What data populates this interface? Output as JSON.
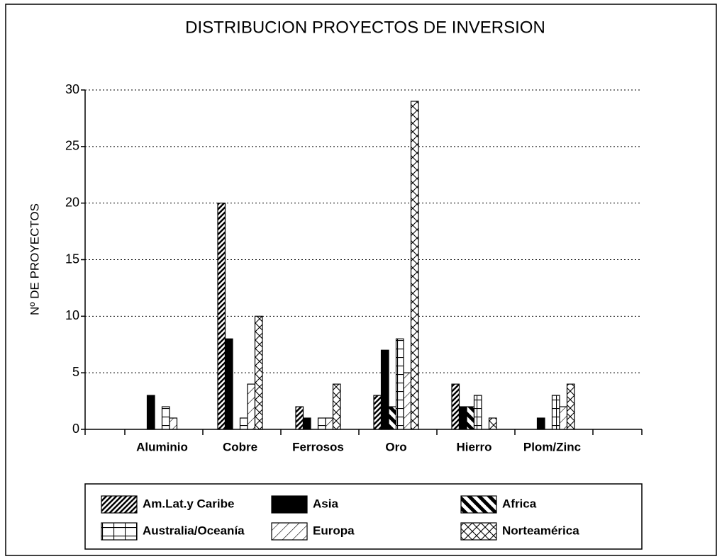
{
  "chart_data": {
    "type": "bar",
    "title": "DISTRIBUCION PROYECTOS DE INVERSION",
    "y_label": "Nº DE PROYECTOS",
    "categories": [
      "Aluminio",
      "Cobre",
      "Ferrosos",
      "Oro",
      "Hierro",
      "Plom/Zinc"
    ],
    "series": [
      {
        "name": "Am.Lat.y Caribe",
        "color": "#000000",
        "values": [
          0,
          20,
          2,
          3,
          4,
          0
        ]
      },
      {
        "name": "Asia",
        "color": "#000000",
        "values": [
          3,
          8,
          1,
          7,
          2,
          1
        ]
      },
      {
        "name": "Africa",
        "color": "#000000",
        "values": [
          0,
          0,
          0,
          2,
          2,
          0
        ]
      },
      {
        "name": "Australia/Oceanía",
        "color": "#000000",
        "values": [
          2,
          1,
          1,
          8,
          3,
          3
        ]
      },
      {
        "name": "Europa",
        "color": "#000000",
        "values": [
          1,
          4,
          1,
          5,
          0,
          2
        ]
      },
      {
        "name": "Norteamérica",
        "color": "#000000",
        "values": [
          0,
          10,
          4,
          29,
          1,
          4
        ]
      }
    ],
    "ylim": [
      0,
      30
    ],
    "yticks": [
      0,
      5,
      10,
      15,
      20,
      25,
      30
    ],
    "grid": true,
    "legend": "bottom"
  }
}
